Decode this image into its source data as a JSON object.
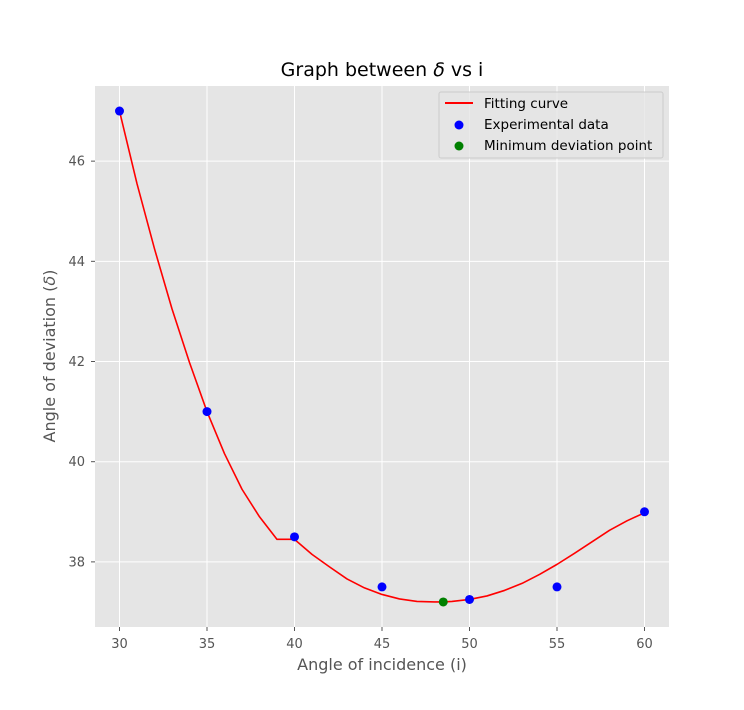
{
  "chart_data": {
    "type": "scatter",
    "title_parts": {
      "prefix": "Graph between ",
      "symbol": "δ",
      "suffix": " vs i"
    },
    "xlabel": "Angle of incidence (i)",
    "ylabel_parts": {
      "prefix": "Angle of deviation (",
      "symbol": "δ",
      "suffix": ")"
    },
    "xlim": [
      28.6,
      61.4
    ],
    "ylim": [
      36.7,
      47.5
    ],
    "xticks": [
      30,
      35,
      40,
      45,
      50,
      55,
      60
    ],
    "yticks": [
      38,
      40,
      42,
      44,
      46
    ],
    "grid": true,
    "style": "ggplot",
    "legend_position": "top-right",
    "series": [
      {
        "name": "Fitting curve",
        "kind": "line",
        "color": "#ff0000",
        "x": [
          30,
          31,
          32,
          33,
          34,
          35,
          36,
          37,
          38,
          39,
          40,
          41,
          42,
          43,
          44,
          45,
          46,
          47,
          48,
          48.5,
          49,
          50,
          51,
          52,
          53,
          54,
          55,
          56,
          57,
          58,
          59,
          60
        ],
        "y": [
          47.0,
          45.55,
          44.25,
          43.05,
          41.98,
          41.0,
          40.16,
          39.45,
          38.9,
          38.45,
          38.45,
          38.15,
          37.9,
          37.66,
          37.48,
          37.35,
          37.26,
          37.21,
          37.2,
          37.2,
          37.21,
          37.25,
          37.32,
          37.43,
          37.57,
          37.75,
          37.95,
          38.17,
          38.4,
          38.63,
          38.82,
          38.98
        ]
      },
      {
        "name": "Experimental data",
        "kind": "scatter",
        "color": "#0000ff",
        "x": [
          30,
          35,
          40,
          45,
          50,
          55,
          60
        ],
        "y": [
          47.0,
          41.0,
          38.5,
          37.5,
          37.25,
          37.5,
          39.0
        ]
      },
      {
        "name": "Minimum deviation point",
        "kind": "scatter",
        "color": "#008000",
        "x": [
          48.5
        ],
        "y": [
          37.2
        ]
      }
    ]
  }
}
